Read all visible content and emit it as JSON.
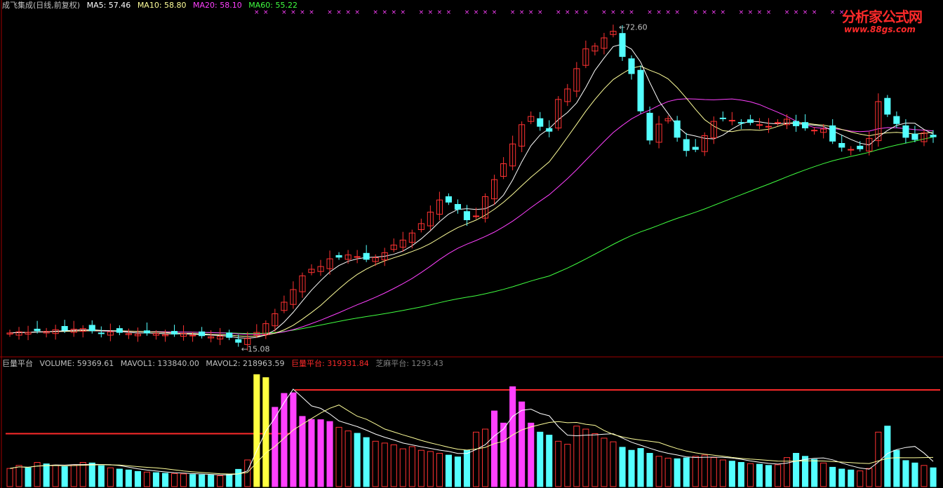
{
  "price_panel": {
    "stock_name": "成飞集成(日线,前复权)",
    "ma5": "MA5: 57.46",
    "ma10": "MA10: 58.80",
    "ma20": "MA20: 58.10",
    "ma60": "MA60: 55.22",
    "high_label": "72.60",
    "low_label": "15.08",
    "colors": {
      "up": "#ff3232",
      "down": "#54ffff",
      "ma5": "#ffffff",
      "ma10": "#ffff9a",
      "ma20": "#ff40ff",
      "ma60": "#40ff40",
      "signal": "#ff40ff"
    }
  },
  "volume_panel": {
    "indicator": "巨量平台",
    "volume": "VOLUME: 59369.61",
    "mavol1": "MAVOL1: 133840.00",
    "mavol2": "MAVOL2: 218963.59",
    "huge_platform": "巨量平台: 319331.84",
    "sesame_platform": "芝麻平台: 1293.43",
    "colors": {
      "huge": "#ff2a2a",
      "sesame": "#808080",
      "highlight": "#ffff40",
      "pink": "#ff40ff"
    }
  },
  "watermark": {
    "title": "分析家公式网",
    "url": "www.88gs.com"
  },
  "chart_data": {
    "type": "candlestick",
    "price_extremes": {
      "high": 72.6,
      "low": 15.08
    },
    "moving_averages": {
      "MA5": 57.46,
      "MA10": 58.8,
      "MA20": 58.1,
      "MA60": 55.22
    },
    "close_series": [
      17.2,
      17.4,
      17.3,
      17.6,
      17.5,
      17.8,
      17.7,
      17.9,
      18.0,
      17.6,
      17.2,
      17.4,
      17.3,
      17.1,
      17.0,
      17.2,
      17.1,
      16.9,
      17.0,
      17.1,
      16.8,
      16.7,
      16.5,
      16.6,
      16.4,
      15.5,
      16.2,
      17.3,
      18.9,
      20.7,
      22.8,
      25.1,
      27.6,
      28.8,
      29.3,
      30.7,
      31.0,
      31.4,
      31.1,
      30.6,
      30.9,
      31.8,
      33.2,
      34.1,
      35.4,
      37.1,
      39.2,
      41.4,
      41.0,
      39.7,
      37.8,
      38.5,
      42.0,
      45.1,
      48.0,
      51.6,
      55.1,
      56.6,
      54.8,
      53.9,
      59.7,
      61.6,
      65.3,
      68.9,
      69.4,
      70.9,
      72.1,
      67.5,
      64.4,
      57.6,
      52.3,
      55.2,
      56.2,
      52.8,
      50.4,
      50.6,
      53.1,
      55.7,
      56.2,
      55.9,
      55.4,
      55.5,
      55.1,
      54.8,
      55.5,
      56.1,
      54.9,
      54.5,
      54.1,
      54.3,
      52.1,
      51.0,
      50.6,
      50.7,
      52.6,
      59.3,
      57.0,
      55.3,
      52.8,
      52.4,
      53.6,
      52.9
    ],
    "volume_series": [
      60,
      70,
      62,
      80,
      75,
      71,
      66,
      72,
      80,
      78,
      69,
      62,
      58,
      55,
      50,
      48,
      46,
      44,
      43,
      42,
      40,
      39,
      38,
      36,
      40,
      57,
      88,
      370,
      360,
      262,
      308,
      310,
      232,
      222,
      221,
      215,
      196,
      184,
      176,
      162,
      150,
      144,
      138,
      125,
      132,
      120,
      116,
      110,
      104,
      98,
      120,
      180,
      190,
      250,
      210,
      330,
      280,
      210,
      180,
      170,
      150,
      140,
      200,
      190,
      175,
      160,
      148,
      130,
      120,
      126,
      110,
      100,
      94,
      92,
      95,
      100,
      104,
      96,
      88,
      84,
      80,
      76,
      74,
      70,
      72,
      96,
      110,
      100,
      90,
      78,
      64,
      58,
      55,
      52,
      60,
      180,
      200,
      120,
      86,
      78,
      70,
      62
    ],
    "huge_platform": 319331.84,
    "sesame_platform": 1293.43
  }
}
